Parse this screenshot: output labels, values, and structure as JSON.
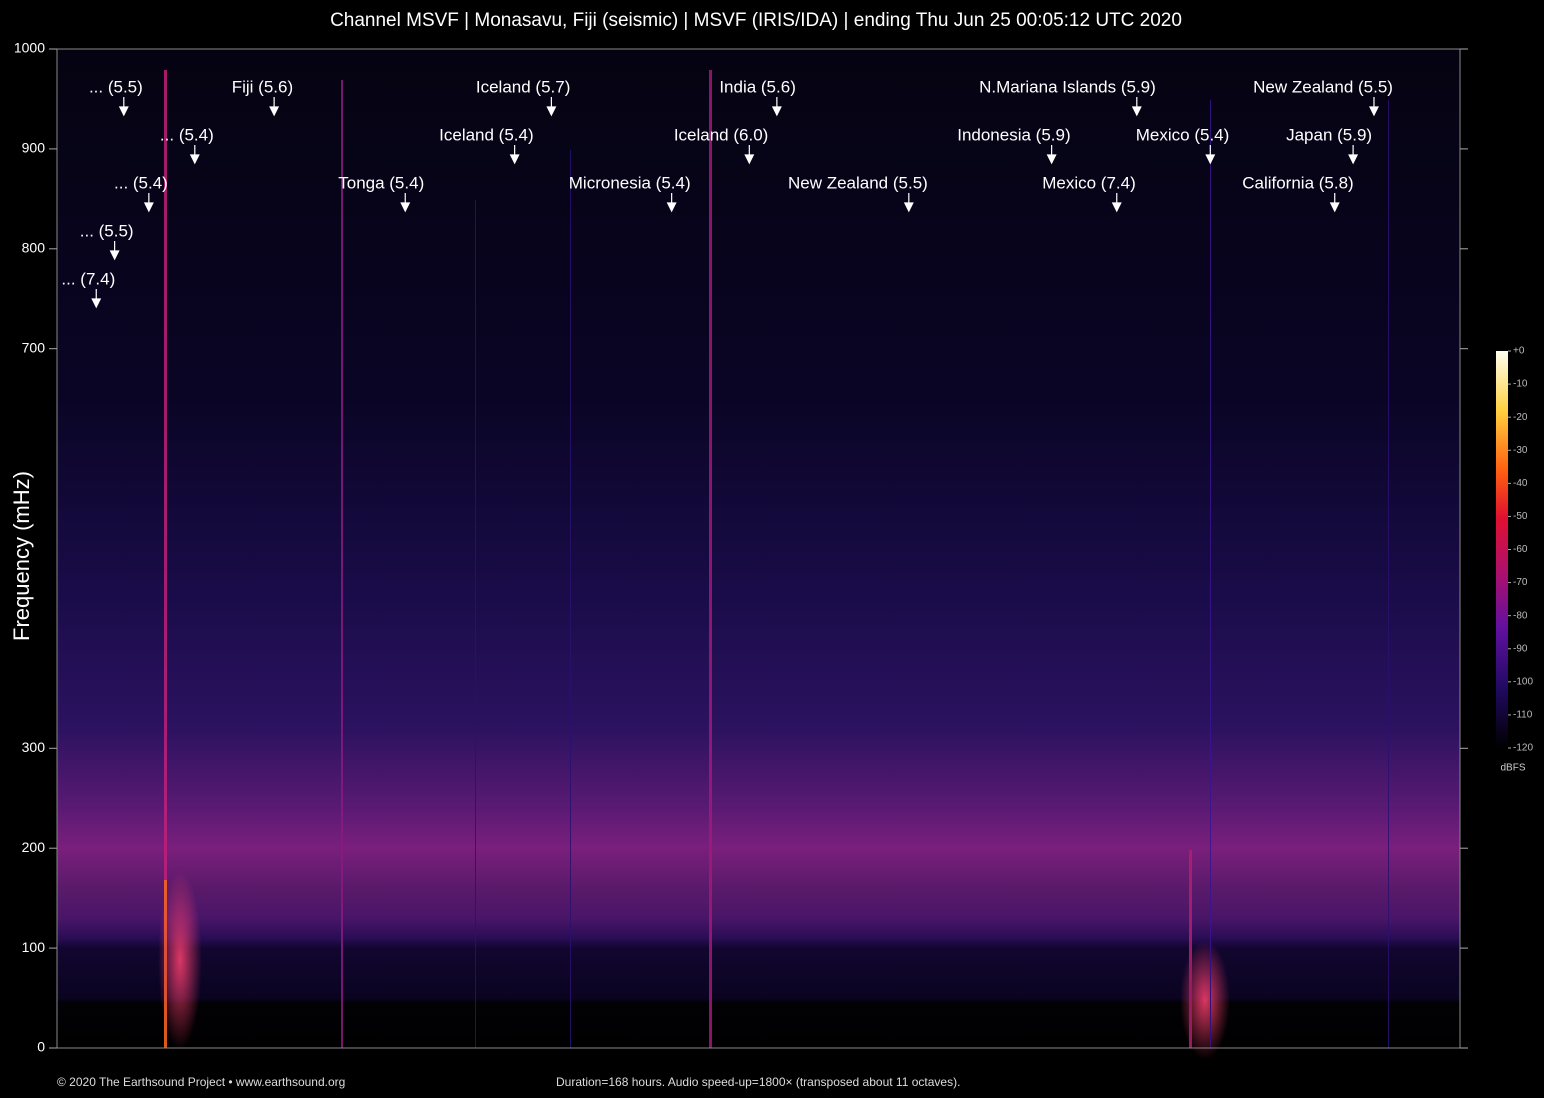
{
  "chart_data": {
    "type": "spectrogram",
    "title": "Channel MSVF | Monasavu, Fiji (seismic) | MSVF (IRIS/IDA) | ending Thu Jun 25 00:05:12 UTC 2020",
    "ylabel": "Frequency (mHz)",
    "ylim": [
      0,
      1000
    ],
    "yticks": [
      0,
      100,
      200,
      300,
      700,
      800,
      900,
      1000
    ],
    "xlim": [
      0,
      168
    ],
    "annotations": [
      {
        "text": "... (7.4)",
        "x": 4.7
      },
      {
        "text": "... (5.5)",
        "x": 6.9
      },
      {
        "text": "... (5.4)",
        "x": 11.0
      },
      {
        "text": "... (5.5)",
        "x": 8.0
      },
      {
        "text": "... (5.4)",
        "x": 16.5
      },
      {
        "text": "Fiji (5.6)",
        "x": 26.0
      },
      {
        "text": "Tonga (5.4)",
        "x": 41.7
      },
      {
        "text": "Iceland (5.4)",
        "x": 54.8
      },
      {
        "text": "Iceland (5.7)",
        "x": 59.2
      },
      {
        "text": "Micronesia (5.4)",
        "x": 73.6
      },
      {
        "text": "Iceland (6.0)",
        "x": 82.9
      },
      {
        "text": "India (5.6)",
        "x": 86.2
      },
      {
        "text": "New Zealand (5.5)",
        "x": 102.0
      },
      {
        "text": "Indonesia (5.9)",
        "x": 119.1
      },
      {
        "text": "Mexico (7.4)",
        "x": 126.9
      },
      {
        "text": "N.Mariana Islands (5.9)",
        "x": 129.3
      },
      {
        "text": "Mexico (5.4)",
        "x": 138.1
      },
      {
        "text": "California (5.8)",
        "x": 153.0
      },
      {
        "text": "Japan (5.9)",
        "x": 155.2
      },
      {
        "text": "New Zealand (5.5)",
        "x": 157.7
      }
    ],
    "colorbar": {
      "label": "dBFS",
      "lim": [
        -120,
        0
      ],
      "ticks": [
        {
          "value": 0,
          "label": "+0"
        },
        -10,
        -20,
        -30,
        -40,
        -50,
        -60,
        -70,
        -80,
        -90,
        -100,
        -110,
        -120
      ]
    }
  },
  "footer": {
    "credit": "© 2020 The Earthsound Project • www.earthsound.org",
    "note": "Duration=168 hours. Audio speed-up=1800× (transposed about 11 octaves)."
  }
}
